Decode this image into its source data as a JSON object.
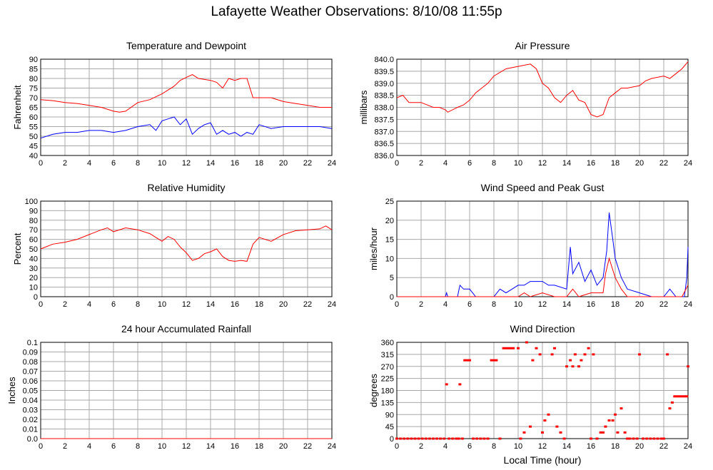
{
  "title": "Lafayette Weather Observations: 8/10/08 11:55p",
  "xlabel_bottom": "Local Time (hour)",
  "colors": {
    "red": "#ff0000",
    "blue": "#0000ff",
    "grid": "#a8a8a8",
    "frame": "#000000"
  },
  "chart_data": [
    {
      "id": "temp",
      "type": "line",
      "title": "Temperature and Dewpoint",
      "ylabel": "Fahrenheit",
      "xlim": [
        0,
        24
      ],
      "ylim": [
        40,
        90
      ],
      "x_ticks": [
        0,
        2,
        4,
        6,
        8,
        10,
        12,
        14,
        16,
        18,
        20,
        22,
        24
      ],
      "y_ticks": [
        40,
        45,
        50,
        55,
        60,
        65,
        70,
        75,
        80,
        85,
        90
      ],
      "series": [
        {
          "color": "#ff0000",
          "x": [
            0,
            1,
            2,
            3,
            4,
            5,
            6,
            6.5,
            7,
            8,
            9,
            10,
            11,
            11.5,
            12,
            12.5,
            13,
            14,
            14.5,
            15,
            15.5,
            16,
            16.5,
            17,
            17.5,
            18,
            19,
            20,
            21,
            22,
            23,
            24
          ],
          "y": [
            69,
            68.5,
            67.5,
            67,
            66,
            65,
            63,
            62.5,
            63,
            67.5,
            69,
            72,
            76,
            79,
            80.5,
            82,
            80,
            79,
            78,
            75,
            80,
            79,
            80,
            80,
            70,
            70,
            70,
            68,
            67,
            66,
            65,
            65
          ]
        },
        {
          "color": "#0000ff",
          "x": [
            0,
            1,
            2,
            3,
            4,
            5,
            6,
            7,
            8,
            9,
            9.5,
            10,
            10.5,
            11,
            11.5,
            12,
            12.5,
            13,
            13.5,
            14,
            14.5,
            15,
            15.5,
            16,
            16.5,
            17,
            17.5,
            18,
            19,
            20,
            21,
            22,
            23,
            24
          ],
          "y": [
            49,
            51,
            52,
            52,
            53,
            53,
            52,
            53,
            55,
            56,
            53,
            58,
            59,
            60,
            56,
            59,
            51,
            54,
            56,
            57,
            51,
            53,
            51,
            52,
            50,
            52,
            51,
            56,
            54,
            55,
            55,
            55,
            55,
            54
          ]
        }
      ]
    },
    {
      "id": "pressure",
      "type": "line",
      "title": "Air Pressure",
      "ylabel": "millibars",
      "xlim": [
        0,
        24
      ],
      "ylim": [
        836.0,
        840.0
      ],
      "x_ticks": [
        0,
        2,
        4,
        6,
        8,
        10,
        12,
        14,
        16,
        18,
        20,
        22,
        24
      ],
      "y_ticks": [
        "836.0",
        "836.5",
        "837.0",
        "837.5",
        "838.0",
        "838.5",
        "839.0",
        "839.5",
        "840.0"
      ],
      "series": [
        {
          "color": "#ff0000",
          "x": [
            0,
            0.5,
            1,
            2,
            3,
            3.5,
            4,
            4.2,
            5,
            5.5,
            6,
            6.5,
            7,
            7.5,
            8,
            9,
            10,
            11,
            11.5,
            12,
            12.5,
            13,
            13.5,
            14,
            14.5,
            15,
            15.5,
            16,
            16.5,
            17,
            17.5,
            18,
            18.5,
            19,
            20,
            20.5,
            21,
            22,
            22.5,
            23,
            23.5,
            24
          ],
          "y": [
            838.4,
            838.5,
            838.2,
            838.2,
            838.0,
            838.0,
            837.9,
            837.8,
            838.0,
            838.1,
            838.3,
            838.6,
            838.8,
            839.0,
            839.3,
            839.6,
            839.7,
            839.8,
            839.6,
            839.0,
            838.8,
            838.4,
            838.2,
            838.5,
            838.7,
            838.3,
            838.2,
            837.7,
            837.6,
            837.7,
            838.4,
            838.6,
            838.8,
            838.8,
            838.9,
            839.1,
            839.2,
            839.3,
            839.2,
            839.4,
            839.6,
            839.9
          ]
        }
      ]
    },
    {
      "id": "humidity",
      "type": "line",
      "title": "Relative Humidity",
      "ylabel": "Percent",
      "xlim": [
        0,
        24
      ],
      "ylim": [
        0,
        100
      ],
      "x_ticks": [
        0,
        2,
        4,
        6,
        8,
        10,
        12,
        14,
        16,
        18,
        20,
        22,
        24
      ],
      "y_ticks": [
        0,
        10,
        20,
        30,
        40,
        50,
        60,
        70,
        80,
        90,
        100
      ],
      "series": [
        {
          "color": "#ff0000",
          "x": [
            0,
            1,
            2,
            3,
            4,
            5,
            5.5,
            6,
            7,
            8,
            9,
            9.5,
            10,
            10.5,
            11,
            11.5,
            12,
            12.5,
            13,
            13.5,
            14,
            14.5,
            15,
            15.5,
            16,
            16.5,
            17,
            17.5,
            18,
            19,
            20,
            21,
            22,
            23,
            23.5,
            24
          ],
          "y": [
            50,
            55,
            57,
            60,
            65,
            70,
            72,
            68,
            72,
            70,
            66,
            62,
            58,
            63,
            60,
            52,
            46,
            38,
            40,
            45,
            47,
            50,
            42,
            38,
            37,
            38,
            37,
            55,
            62,
            58,
            65,
            69,
            70,
            71,
            74,
            70
          ]
        }
      ]
    },
    {
      "id": "wind",
      "type": "line",
      "title": "Wind Speed and Peak Gust",
      "ylabel": "miles/hour",
      "xlim": [
        0,
        24
      ],
      "ylim": [
        0,
        25
      ],
      "x_ticks": [
        0,
        2,
        4,
        6,
        8,
        10,
        12,
        14,
        16,
        18,
        20,
        22,
        24
      ],
      "y_ticks": [
        0,
        5,
        10,
        15,
        20,
        25
      ],
      "series": [
        {
          "color": "#0000ff",
          "x": [
            0,
            4,
            4.1,
            4.2,
            5,
            5.2,
            5.5,
            6,
            6.5,
            8,
            8.5,
            9,
            9.5,
            10,
            10.5,
            11,
            12,
            12.5,
            13,
            14,
            14.3,
            14.5,
            15,
            15.5,
            16,
            16.5,
            17,
            17.3,
            17.5,
            17.8,
            18,
            18.5,
            19,
            20,
            21,
            22,
            22.5,
            23,
            23.7,
            23.9,
            24
          ],
          "y": [
            0,
            0,
            1,
            0,
            0,
            3,
            2,
            2,
            0,
            0,
            2,
            1,
            2,
            3,
            3,
            4,
            4,
            3,
            3,
            2,
            13,
            6,
            9,
            4,
            7,
            3,
            5,
            12,
            22,
            15,
            10,
            5,
            2,
            1,
            0,
            0,
            2,
            0,
            0,
            5,
            13
          ]
        },
        {
          "color": "#ff0000",
          "x": [
            0,
            10,
            10.5,
            11,
            12,
            13,
            14,
            14.5,
            15,
            16,
            17,
            17.2,
            17.5,
            18,
            18.5,
            19,
            23.5,
            24
          ],
          "y": [
            0,
            0,
            1,
            0,
            1,
            0,
            0,
            2,
            0,
            1,
            1,
            6,
            10,
            5,
            2,
            0,
            0,
            3
          ]
        }
      ]
    },
    {
      "id": "rain",
      "type": "line",
      "title": "24 hour Accumulated Rainfall",
      "ylabel": "Inches",
      "xlim": [
        0,
        24
      ],
      "ylim": [
        0,
        0.1
      ],
      "x_ticks": [
        0,
        2,
        4,
        6,
        8,
        10,
        12,
        14,
        16,
        18,
        20,
        22,
        24
      ],
      "y_ticks": [
        "0.0",
        "0.01",
        "0.02",
        "0.03",
        "0.04",
        "0.05",
        "0.06",
        "0.07",
        "0.08",
        "0.09",
        "0.1"
      ],
      "series": [
        {
          "color": "#ff0000",
          "x": [
            0,
            24
          ],
          "y": [
            0,
            0
          ]
        }
      ]
    },
    {
      "id": "direction",
      "type": "scatter",
      "title": "Wind Direction",
      "ylabel": "degrees",
      "xlim": [
        0,
        24
      ],
      "ylim": [
        0,
        360
      ],
      "x_ticks": [
        0,
        2,
        4,
        6,
        8,
        10,
        12,
        14,
        16,
        18,
        20,
        22,
        24
      ],
      "y_ticks": [
        0,
        45,
        90,
        135,
        180,
        225,
        270,
        315,
        360
      ],
      "series": [
        {
          "color": "#ff0000",
          "x": [
            0,
            0.3,
            0.6,
            0.9,
            1.2,
            1.5,
            1.8,
            2.1,
            2.4,
            2.7,
            3,
            3.3,
            3.6,
            3.9,
            4.1,
            4.3,
            4.6,
            4.9,
            5.1,
            5.2,
            5.4,
            5.6,
            5.8,
            6,
            6.3,
            6.6,
            6.9,
            7.2,
            7.5,
            7.8,
            8,
            8.2,
            8.5,
            8.8,
            9,
            9.2,
            9.4,
            9.6,
            10,
            10.2,
            10.5,
            10.7,
            11,
            11.2,
            11.5,
            11.8,
            12,
            12.2,
            12.5,
            12.8,
            13,
            13.2,
            13.5,
            13.8,
            14,
            14.3,
            14.5,
            14.7,
            15,
            15.2,
            15.5,
            15.8,
            16,
            16.2,
            16.5,
            16.8,
            17,
            17.2,
            17.5,
            17.8,
            18,
            18.2,
            18.5,
            18.8,
            19,
            19.2,
            19.5,
            19.8,
            20,
            20.3,
            20.6,
            20.9,
            21.2,
            21.5,
            21.8,
            22,
            22.3,
            22.5,
            22.7,
            22.9,
            23.1,
            23.3,
            23.5,
            23.7,
            23.9,
            24
          ],
          "y": [
            0,
            0,
            0,
            0,
            0,
            0,
            0,
            0,
            0,
            0,
            0,
            0,
            0,
            0,
            203,
            0,
            0,
            0,
            0,
            203,
            0,
            293,
            293,
            293,
            0,
            0,
            0,
            0,
            0,
            293,
            293,
            293,
            0,
            338,
            338,
            338,
            338,
            338,
            338,
            0,
            23,
            360,
            45,
            293,
            338,
            315,
            23,
            68,
            90,
            315,
            338,
            45,
            23,
            0,
            270,
            293,
            270,
            315,
            270,
            293,
            315,
            338,
            0,
            315,
            0,
            23,
            23,
            45,
            68,
            68,
            90,
            23,
            113,
            23,
            0,
            0,
            0,
            0,
            315,
            0,
            0,
            0,
            0,
            0,
            0,
            0,
            315,
            113,
            135,
            158,
            158,
            158,
            158,
            158,
            158,
            270
          ]
        }
      ]
    }
  ]
}
